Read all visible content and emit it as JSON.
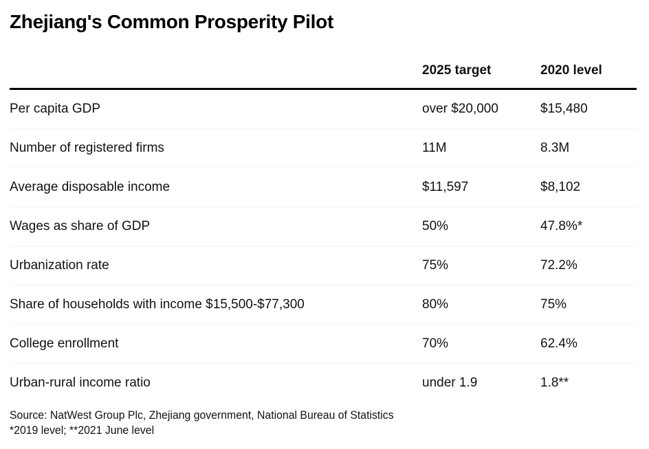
{
  "title": "Zhejiang's Common Prosperity Pilot",
  "table": {
    "headers": [
      "",
      "2025 target",
      "2020 level"
    ],
    "rows": [
      {
        "indicator": "Per capita GDP",
        "target_2025": "over $20,000",
        "level_2020": "$15,480"
      },
      {
        "indicator": "Number of registered firms",
        "target_2025": "11M",
        "level_2020": "8.3M"
      },
      {
        "indicator": "Average disposable income",
        "target_2025": "$11,597",
        "level_2020": "$8,102"
      },
      {
        "indicator": "Wages as share of GDP",
        "target_2025": "50%",
        "level_2020": "47.8%*"
      },
      {
        "indicator": "Urbanization rate",
        "target_2025": "75%",
        "level_2020": "72.2%"
      },
      {
        "indicator": "Share of households with income $15,500-$77,300",
        "target_2025": "80%",
        "level_2020": "75%"
      },
      {
        "indicator": "College enrollment",
        "target_2025": "70%",
        "level_2020": "62.4%"
      },
      {
        "indicator": "Urban-rural income ratio",
        "target_2025": "under 1.9",
        "level_2020": "1.8**"
      }
    ]
  },
  "footer": {
    "source": "Source: NatWest Group Plc, Zhejiang government, National Bureau of Statistics",
    "note": "*2019 level; **2021 June level"
  }
}
